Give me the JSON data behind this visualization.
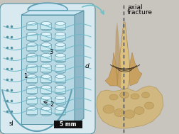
{
  "bg_color": "#c8c4be",
  "fig_width": 2.52,
  "fig_height": 1.89,
  "dpi": 100,
  "scale_bar_text": "5 mm",
  "axial_fracture_line1": "axial",
  "axial_fracture_line2": "fracture",
  "label_1": "1",
  "label_2": "2",
  "label_3": "3",
  "label_d": "d",
  "label_sl": "sl",
  "cyl_fill": "#c8e8f0",
  "cyl_top": "#a0ccd8",
  "cyl_edge": "#5090a0",
  "block_front": "#c0d8e0",
  "block_right": "#a0bcc8",
  "block_top": "#d8eaf0",
  "block_edge": "#5090a0",
  "wave_color": "#70b8c8",
  "outer_curve_color": "#80b8c8",
  "arrow_color": "#70c0c8",
  "dashed_line_color": "#303030",
  "scale_bar_bg": "#101010",
  "scale_bar_fg": "#ffffff",
  "text_color": "#000000",
  "bg_diagram": "#d8eaf0"
}
